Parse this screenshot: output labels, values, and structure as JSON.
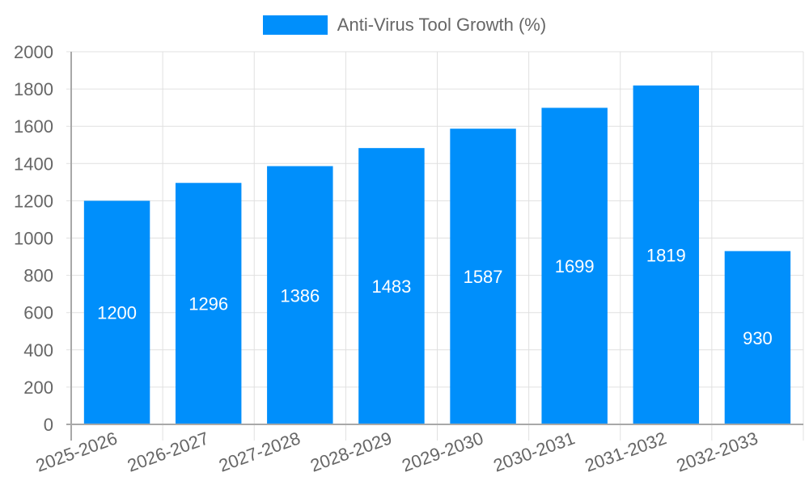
{
  "chart_data": {
    "type": "bar",
    "title": "",
    "xlabel": "",
    "ylabel": "",
    "categories": [
      "2025-2026",
      "2026-2027",
      "2027-2028",
      "2028-2029",
      "2029-2030",
      "2030-2031",
      "2031-2032",
      "2032-2033"
    ],
    "series": [
      {
        "name": "Anti-Virus Tool Growth (%)",
        "color": "#008ffb",
        "values": [
          1200,
          1296,
          1386,
          1483,
          1587,
          1699,
          1819,
          930
        ]
      }
    ],
    "ylim": [
      0,
      2000
    ],
    "yticks": [
      0,
      200,
      400,
      600,
      800,
      1000,
      1200,
      1400,
      1600,
      1800,
      2000
    ],
    "grid": true,
    "legend_position": "top",
    "data_labels": true,
    "xtick_rotation": -20
  },
  "legend": {
    "label": "Anti-Virus Tool Growth (%)",
    "color": "#008ffb"
  },
  "colors": {
    "bar": "#008ffb",
    "grid": "#e0e0e0",
    "axis": "#a8a8a8",
    "text": "#666666",
    "label": "#ffffff"
  }
}
